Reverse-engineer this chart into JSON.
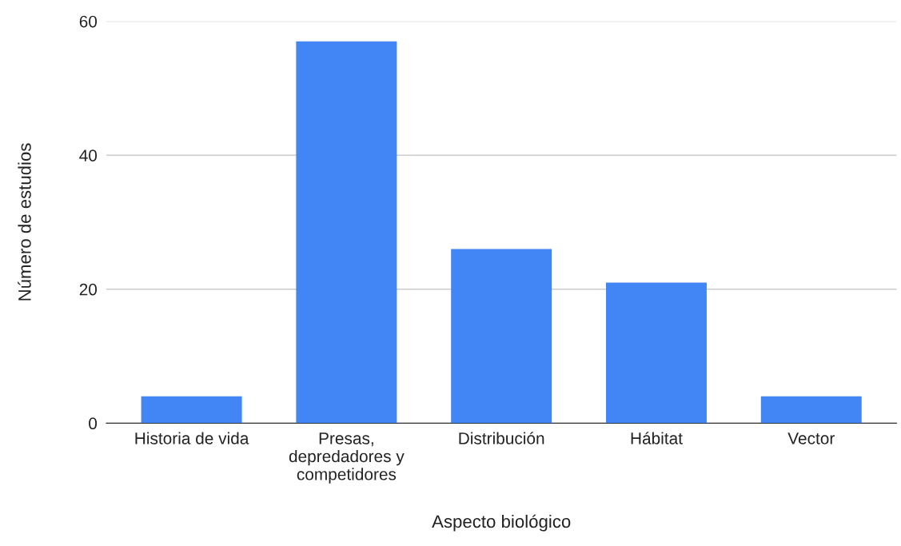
{
  "chart_data": {
    "type": "bar",
    "categories": [
      "Historia de vida",
      "Presas,\ndepredadores y\ncompetidores",
      "Distribución",
      "Hábitat",
      "Vector"
    ],
    "values": [
      4,
      57,
      26,
      21,
      4
    ],
    "color": "#4285f4",
    "xlabel": "Aspecto biológico",
    "ylabel": "Número de estudios",
    "ylim": [
      0,
      60
    ],
    "yticks": [
      0,
      20,
      40,
      60
    ],
    "grid": "y",
    "legend": false
  }
}
